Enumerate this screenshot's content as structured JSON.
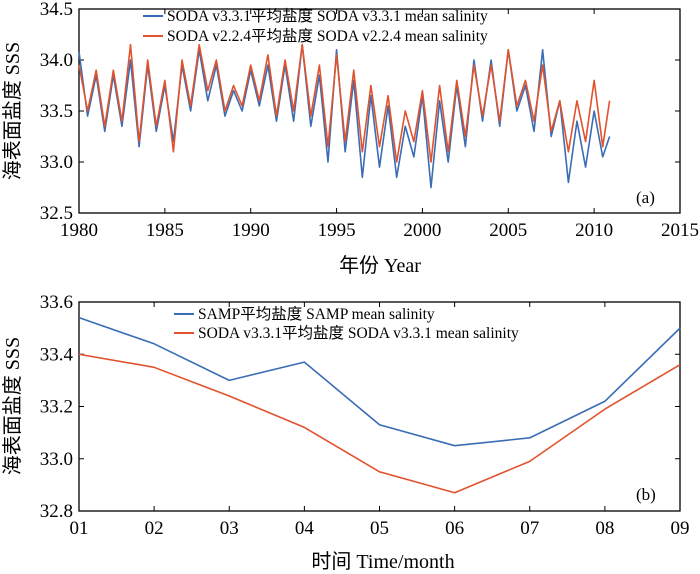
{
  "chart_data": [
    {
      "type": "line",
      "panel_label": "(a)",
      "xlabel": "年份 Year",
      "ylabel": "海表面盐度 SSS",
      "xlim": [
        1980,
        2015
      ],
      "ylim": [
        32.5,
        34.5
      ],
      "xticks": [
        "1980",
        "1985",
        "1990",
        "1995",
        "2000",
        "2005",
        "2010",
        "2015"
      ],
      "yticks": [
        "32.5",
        "33.0",
        "33.5",
        "34.0",
        "34.5"
      ],
      "legend_position": "top-center",
      "series": [
        {
          "name": "SODA v3.3.1平均盐度 SODA v3.3.1 mean salinity",
          "color": "#3a6db5",
          "x": [
            1980.0,
            1980.5,
            1981.0,
            1981.5,
            1982.0,
            1982.5,
            1983.0,
            1983.5,
            1984.0,
            1984.5,
            1985.0,
            1985.5,
            1986.0,
            1986.5,
            1987.0,
            1987.5,
            1988.0,
            1988.5,
            1989.0,
            1989.5,
            1990.0,
            1990.5,
            1991.0,
            1991.5,
            1992.0,
            1992.5,
            1993.0,
            1993.5,
            1994.0,
            1994.5,
            1995.0,
            1995.5,
            1996.0,
            1996.5,
            1997.0,
            1997.5,
            1998.0,
            1998.5,
            1999.0,
            1999.5,
            2000.0,
            2000.5,
            2001.0,
            2001.5,
            2002.0,
            2002.5,
            2003.0,
            2003.5,
            2004.0,
            2004.5,
            2005.0,
            2005.5,
            2006.0,
            2006.5,
            2007.0,
            2007.5,
            2008.0,
            2008.5,
            2009.0,
            2009.5,
            2010.0,
            2010.5,
            2010.9
          ],
          "values": [
            34.08,
            33.45,
            33.85,
            33.3,
            33.85,
            33.35,
            34.0,
            33.15,
            33.95,
            33.3,
            33.75,
            33.2,
            33.95,
            33.5,
            34.1,
            33.6,
            33.95,
            33.45,
            33.7,
            33.5,
            33.9,
            33.55,
            33.95,
            33.4,
            33.95,
            33.4,
            34.15,
            33.35,
            33.85,
            33.0,
            34.1,
            33.1,
            33.8,
            32.85,
            33.65,
            32.95,
            33.55,
            32.85,
            33.35,
            33.05,
            33.65,
            32.75,
            33.6,
            33.0,
            33.75,
            33.15,
            34.0,
            33.4,
            34.0,
            33.35,
            34.1,
            33.5,
            33.75,
            33.3,
            34.1,
            33.25,
            33.6,
            32.8,
            33.4,
            32.95,
            33.5,
            33.05,
            33.25
          ]
        },
        {
          "name": "SODA v2.2.4平均盐度 SODA v2.2.4 mean salinity",
          "color": "#e2522c",
          "x": [
            1980.0,
            1980.5,
            1981.0,
            1981.5,
            1982.0,
            1982.5,
            1983.0,
            1983.5,
            1984.0,
            1984.5,
            1985.0,
            1985.5,
            1986.0,
            1986.5,
            1987.0,
            1987.5,
            1988.0,
            1988.5,
            1989.0,
            1989.5,
            1990.0,
            1990.5,
            1991.0,
            1991.5,
            1992.0,
            1992.5,
            1993.0,
            1993.5,
            1994.0,
            1994.5,
            1995.0,
            1995.5,
            1996.0,
            1996.5,
            1997.0,
            1997.5,
            1998.0,
            1998.5,
            1999.0,
            1999.5,
            2000.0,
            2000.5,
            2001.0,
            2001.5,
            2002.0,
            2002.5,
            2003.0,
            2003.5,
            2004.0,
            2004.5,
            2005.0,
            2005.5,
            2006.0,
            2006.5,
            2007.0,
            2007.5,
            2008.0,
            2008.5,
            2009.0,
            2009.5,
            2010.0,
            2010.5,
            2010.9
          ],
          "values": [
            33.95,
            33.5,
            33.9,
            33.35,
            33.9,
            33.4,
            34.15,
            33.2,
            34.0,
            33.35,
            33.8,
            33.1,
            34.0,
            33.55,
            34.15,
            33.7,
            34.0,
            33.5,
            33.75,
            33.55,
            33.95,
            33.6,
            34.05,
            33.45,
            34.0,
            33.5,
            34.15,
            33.45,
            33.95,
            33.15,
            34.05,
            33.2,
            33.9,
            33.1,
            33.75,
            33.15,
            33.65,
            33.0,
            33.5,
            33.2,
            33.7,
            33.0,
            33.75,
            33.1,
            33.8,
            33.25,
            33.95,
            33.45,
            33.95,
            33.4,
            34.1,
            33.55,
            33.8,
            33.4,
            33.95,
            33.3,
            33.6,
            33.1,
            33.6,
            33.2,
            33.8,
            33.15,
            33.6
          ]
        }
      ]
    },
    {
      "type": "line",
      "panel_label": "(b)",
      "xlabel": "时间 Time/month",
      "ylabel": "海表面盐度 SSS",
      "categories": [
        "01",
        "02",
        "03",
        "04",
        "05",
        "06",
        "07",
        "08",
        "09"
      ],
      "ylim": [
        32.8,
        33.6
      ],
      "yticks": [
        "32.8",
        "33.0",
        "33.2",
        "33.4",
        "33.6"
      ],
      "legend_position": "top-center",
      "series": [
        {
          "name": "SAMP平均盐度 SAMP mean salinity",
          "color": "#3a6db5",
          "values": [
            33.54,
            33.44,
            33.3,
            33.37,
            33.13,
            33.05,
            33.08,
            33.22,
            33.5
          ]
        },
        {
          "name": "SODA v3.3.1平均盐度 SODA v3.3.1 mean salinity",
          "color": "#e2522c",
          "values": [
            33.4,
            33.35,
            33.24,
            33.12,
            32.95,
            32.87,
            32.99,
            33.19,
            33.36
          ]
        }
      ]
    }
  ]
}
